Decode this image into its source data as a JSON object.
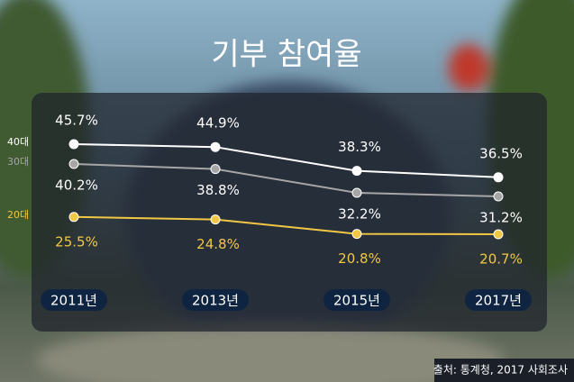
{
  "chart_data": {
    "type": "line",
    "title": "기부 참여율",
    "categories": [
      "2011년",
      "2013년",
      "2015년",
      "2017년"
    ],
    "series": [
      {
        "name": "40대",
        "color": "#ffffff",
        "values": [
          45.7,
          44.9,
          38.3,
          36.5
        ],
        "value_labels": [
          "45.7%",
          "44.9%",
          "38.3%",
          "36.5%"
        ]
      },
      {
        "name": "30대",
        "color": "#a6a6a6",
        "values": [
          40.2,
          38.8,
          32.2,
          31.2
        ],
        "value_labels": [
          "40.2%",
          "38.8%",
          "32.2%",
          "31.2%"
        ]
      },
      {
        "name": "20대",
        "color": "#f2c744",
        "values": [
          25.5,
          24.8,
          20.8,
          20.7
        ],
        "value_labels": [
          "25.5%",
          "24.8%",
          "20.8%",
          "20.7%"
        ]
      }
    ],
    "source": "출처: 통계청, 2017 사회조사"
  }
}
